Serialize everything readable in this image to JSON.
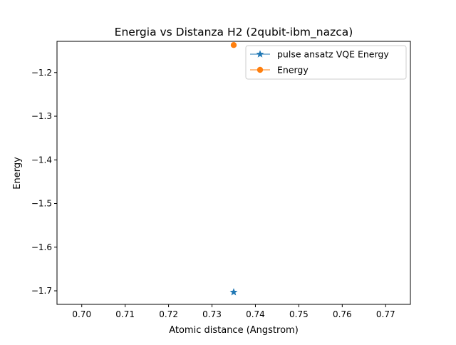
{
  "chart_data": {
    "type": "scatter",
    "title": "Energia vs Distanza H2 (2qubit-ibm_nazca)",
    "xlabel": "Atomic distance (Angstrom)",
    "ylabel": "Energy",
    "xlim": [
      0.6943,
      0.7757
    ],
    "ylim": [
      -1.731,
      -1.1285
    ],
    "xticks": [
      0.7,
      0.71,
      0.72,
      0.73,
      0.74,
      0.75,
      0.76,
      0.77
    ],
    "xtick_labels": [
      "0.70",
      "0.71",
      "0.72",
      "0.73",
      "0.74",
      "0.75",
      "0.76",
      "0.77"
    ],
    "yticks": [
      -1.2,
      -1.3,
      -1.4,
      -1.5,
      -1.6,
      -1.7
    ],
    "ytick_labels": [
      "−1.2",
      "−1.3",
      "−1.4",
      "−1.5",
      "−1.6",
      "−1.7"
    ],
    "grid": false,
    "legend_position": "top-right",
    "series": [
      {
        "name": "pulse ansatz VQE Energy",
        "x": [
          0.735
        ],
        "y": [
          -1.703
        ],
        "color": "#1f77b4",
        "marker": "star"
      },
      {
        "name": "Energy",
        "x": [
          0.735
        ],
        "y": [
          -1.137
        ],
        "color": "#ff7f0e",
        "marker": "circle"
      }
    ]
  }
}
